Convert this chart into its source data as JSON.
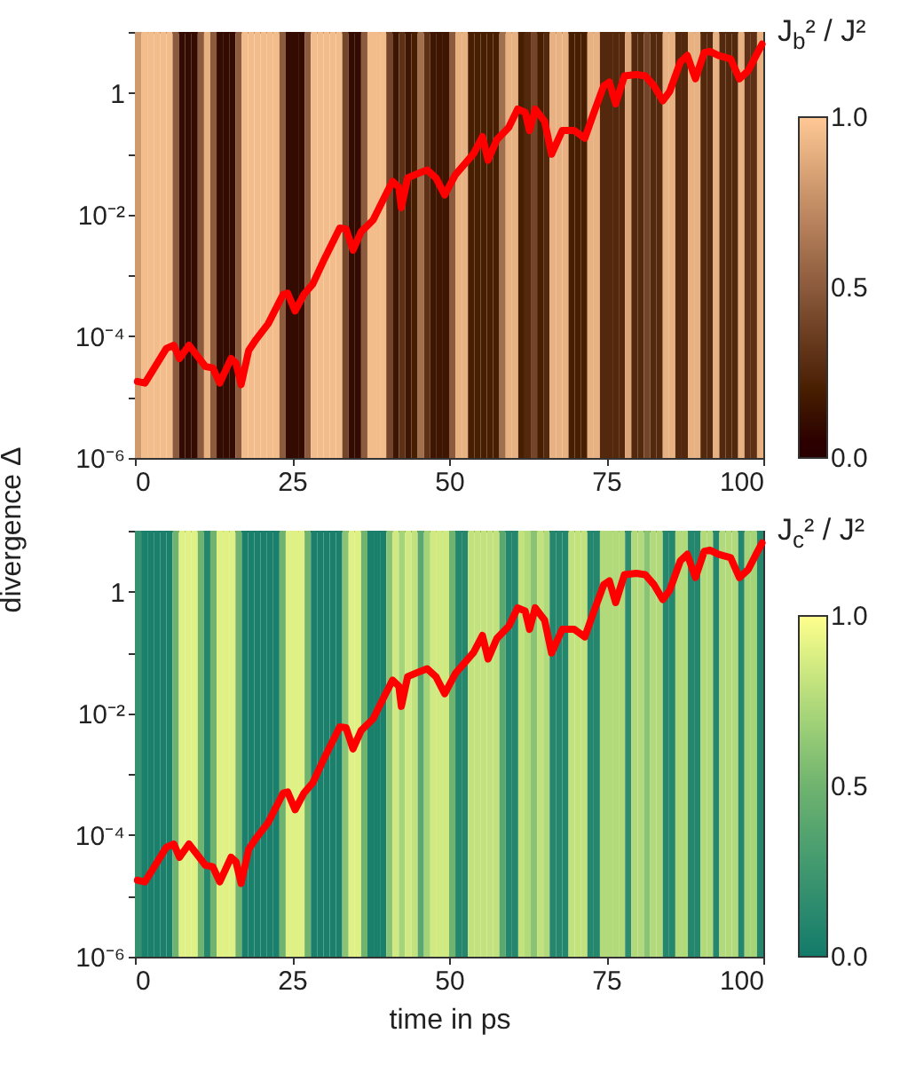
{
  "chart_data": [
    {
      "type": "heatmap",
      "ylabel": "divergence   Δ",
      "clabel": "J$_{b}$² / J²",
      "log": "y",
      "xlim": [
        0,
        100
      ],
      "xticks": [
        0,
        25,
        50,
        75,
        100
      ],
      "ylim": [
        1e-06,
        10
      ],
      "yticks": [
        {
          "value": 1e-06,
          "label": "10⁻⁶"
        },
        {
          "value": 1e-05,
          "label": null
        },
        {
          "value": 0.0001,
          "label": "10⁻⁴"
        },
        {
          "value": 0.001,
          "label": null
        },
        {
          "value": 0.01,
          "label": "10⁻²"
        },
        {
          "value": 0.1,
          "label": null
        },
        1,
        {
          "value": 10,
          "label": null
        }
      ],
      "clim": [
        0,
        1
      ],
      "cticks": [
        {
          "value": 0,
          "label": "0.0"
        },
        {
          "value": 0.5,
          "label": "0.5"
        },
        {
          "value": 1,
          "label": "1.0"
        }
      ],
      "x": [
        0.5,
        1.5,
        2.5,
        3.5,
        4.5,
        5.5,
        6.5,
        7.5,
        8.5,
        9.5,
        10.5,
        11.5,
        12.5,
        13.5,
        14.5,
        15.5,
        16.5,
        17.5,
        18.5,
        19.5,
        20.5,
        21.5,
        22.5,
        23.5,
        24.5,
        25.5,
        26.5,
        27.5,
        28.5,
        29.5,
        30.5,
        31.5,
        32.5,
        33.5,
        34.5,
        35.5,
        36.5,
        37.5,
        38.5,
        39.5,
        40.5,
        41.5,
        42.5,
        43.5,
        44.5,
        45.5,
        46.5,
        47.5,
        48.5,
        49.5,
        50.5,
        51.5,
        52.5,
        53.5,
        54.5,
        55.5,
        56.5,
        57.5,
        58.5,
        59.5,
        60.5,
        61.5,
        62.5,
        63.5,
        64.5,
        65.5,
        66.5,
        67.5,
        68.5,
        69.5,
        70.5,
        71.5,
        72.5,
        73.5,
        74.5,
        75.5,
        76.5,
        77.5,
        78.5,
        79.5,
        80.5,
        81.5,
        82.5,
        83.5,
        84.5,
        85.5,
        86.5,
        87.5,
        88.5,
        89.5,
        90.5,
        91.5,
        92.5,
        93.5,
        94.5,
        95.5,
        96.5,
        97.5,
        98.5,
        99.5
      ],
      "cells": [
        [
          0.8,
          0.95,
          0.95,
          0.95,
          0.95,
          0.95,
          0.5,
          0.1,
          0.1,
          0.1,
          0.5,
          0.9,
          0.5,
          0.1,
          0.1,
          0.1,
          0.5,
          0.95,
          0.95,
          0.95,
          0.95,
          0.95,
          0.95,
          0.5,
          0.1,
          0.1,
          0.1,
          0.5,
          0.95,
          0.95,
          0.95,
          0.95,
          0.95,
          0.4,
          0.1,
          0.1,
          0.5,
          0.95,
          0.95,
          0.95,
          0.4,
          0.15,
          0.3,
          0.15,
          0.2,
          0.6,
          0.3,
          0.15,
          0.15,
          0.15,
          0.5,
          0.9,
          0.9,
          0.2,
          0.2,
          0.2,
          0.2,
          0.2,
          0.6,
          0.9,
          0.9,
          0.2,
          0.25,
          0.4,
          0.2,
          0.25,
          0.9,
          0.9,
          0.9,
          0.2,
          0.2,
          0.2,
          0.9,
          0.9,
          0.25,
          0.25,
          0.25,
          0.25,
          0.85,
          0.25,
          0.25,
          0.4,
          0.25,
          0.25,
          0.9,
          0.9,
          0.25,
          0.25,
          0.9,
          0.9,
          0.25,
          0.25,
          0.9,
          0.25,
          0.25,
          0.25,
          0.9,
          0.3,
          0.3,
          0.9
        ]
      ],
      "series": [
        {
          "type": "line",
          "color": "#ff0000",
          "x": [
            0.4,
            1.6,
            3,
            5,
            6.2,
            7.1,
            8.6,
            9.7,
            11.2,
            12.4,
            13.5,
            15.3,
            16.1,
            16.9,
            18.1,
            19.3,
            21.2,
            23.6,
            24.3,
            25.5,
            26.9,
            28.3,
            30.2,
            32.6,
            33.6,
            34.7,
            36,
            37.9,
            39.8,
            41,
            42,
            42.4,
            43.4,
            45,
            46.5,
            47.9,
            49.3,
            51,
            53.9,
            55.3,
            56.2,
            57.6,
            59.5,
            60.9,
            62.1,
            62.8,
            63.7,
            65.2,
            66.3,
            68,
            69.9,
            71.6,
            72.9,
            74.6,
            75.5,
            76.5,
            77.9,
            79.8,
            81.2,
            82.6,
            84,
            85.1,
            86.8,
            87.9,
            89.2,
            90.6,
            91.5,
            92.9,
            94.8,
            96.2,
            97.6,
            99.1,
            99.8
          ],
          "values": [
            1.8e-05,
            1.7e-05,
            2.9e-05,
            6.3e-05,
            7.1e-05,
            4.3e-05,
            7.1e-05,
            5.1e-05,
            3.2e-05,
            3e-05,
            1.7e-05,
            4.3e-05,
            3.6e-05,
            1.6e-05,
            5.8e-05,
            8.9e-05,
            0.00016,
            0.00049,
            0.00051,
            0.00026,
            0.00049,
            0.00072,
            0.0019,
            0.006,
            0.0058,
            0.0026,
            0.0052,
            0.0081,
            0.02,
            0.035,
            0.028,
            0.013,
            0.04,
            0.047,
            0.054,
            0.04,
            0.021,
            0.045,
            0.1,
            0.19,
            0.078,
            0.17,
            0.27,
            0.54,
            0.48,
            0.24,
            0.54,
            0.34,
            0.098,
            0.24,
            0.24,
            0.18,
            0.43,
            1.3,
            1.5,
            0.66,
            1.9,
            2.0,
            1.9,
            1.3,
            0.74,
            1.05,
            3.2,
            4.1,
            1.7,
            4.6,
            4.8,
            4.1,
            3.6,
            1.7,
            2.3,
            4.6,
            6.3
          ]
        }
      ]
    },
    {
      "type": "heatmap",
      "xlabel": "time in ps",
      "clabel": "J$_{c}$² / J²",
      "log": "y",
      "xlim": [
        0,
        100
      ],
      "xticks": [
        0,
        25,
        50,
        75,
        100
      ],
      "ylim": [
        1e-06,
        10
      ],
      "yticks": [
        {
          "value": 1e-06,
          "label": "10⁻⁶"
        },
        {
          "value": 1e-05,
          "label": null
        },
        {
          "value": 0.0001,
          "label": "10⁻⁴"
        },
        {
          "value": 0.001,
          "label": null
        },
        {
          "value": 0.01,
          "label": "10⁻²"
        },
        {
          "value": 0.1,
          "label": null
        },
        1,
        {
          "value": 10,
          "label": null
        }
      ],
      "clim": [
        0,
        1
      ],
      "cticks": [
        {
          "value": 0,
          "label": "0.0"
        },
        {
          "value": 0.5,
          "label": "0.5"
        },
        {
          "value": 1,
          "label": "1.0"
        }
      ],
      "x": [
        0.5,
        1.5,
        2.5,
        3.5,
        4.5,
        5.5,
        6.5,
        7.5,
        8.5,
        9.5,
        10.5,
        11.5,
        12.5,
        13.5,
        14.5,
        15.5,
        16.5,
        17.5,
        18.5,
        19.5,
        20.5,
        21.5,
        22.5,
        23.5,
        24.5,
        25.5,
        26.5,
        27.5,
        28.5,
        29.5,
        30.5,
        31.5,
        32.5,
        33.5,
        34.5,
        35.5,
        36.5,
        37.5,
        38.5,
        39.5,
        40.5,
        41.5,
        42.5,
        43.5,
        44.5,
        45.5,
        46.5,
        47.5,
        48.5,
        49.5,
        50.5,
        51.5,
        52.5,
        53.5,
        54.5,
        55.5,
        56.5,
        57.5,
        58.5,
        59.5,
        60.5,
        61.5,
        62.5,
        63.5,
        64.5,
        65.5,
        66.5,
        67.5,
        68.5,
        69.5,
        70.5,
        71.5,
        72.5,
        73.5,
        74.5,
        75.5,
        76.5,
        77.5,
        78.5,
        79.5,
        80.5,
        81.5,
        82.5,
        83.5,
        84.5,
        85.5,
        86.5,
        87.5,
        88.5,
        89.5,
        90.5,
        91.5,
        92.5,
        93.5,
        94.5,
        95.5,
        96.5,
        97.5,
        98.5,
        99.5
      ],
      "cells": [
        [
          0.2,
          0.05,
          0.05,
          0.05,
          0.05,
          0.05,
          0.5,
          0.9,
          0.9,
          0.9,
          0.5,
          0.1,
          0.5,
          0.9,
          0.9,
          0.9,
          0.5,
          0.05,
          0.05,
          0.05,
          0.05,
          0.05,
          0.05,
          0.5,
          0.9,
          0.9,
          0.9,
          0.5,
          0.05,
          0.05,
          0.05,
          0.05,
          0.05,
          0.6,
          0.9,
          0.9,
          0.5,
          0.05,
          0.05,
          0.05,
          0.6,
          0.85,
          0.7,
          0.85,
          0.8,
          0.4,
          0.7,
          0.85,
          0.85,
          0.85,
          0.5,
          0.1,
          0.1,
          0.8,
          0.8,
          0.8,
          0.8,
          0.8,
          0.4,
          0.1,
          0.1,
          0.8,
          0.75,
          0.6,
          0.8,
          0.75,
          0.1,
          0.1,
          0.1,
          0.8,
          0.8,
          0.8,
          0.1,
          0.1,
          0.75,
          0.75,
          0.75,
          0.75,
          0.15,
          0.75,
          0.75,
          0.6,
          0.75,
          0.75,
          0.1,
          0.1,
          0.75,
          0.75,
          0.1,
          0.1,
          0.75,
          0.75,
          0.1,
          0.75,
          0.75,
          0.75,
          0.1,
          0.7,
          0.7,
          0.1
        ]
      ],
      "series": [
        {
          "type": "line",
          "color": "#ff0000",
          "x": [
            0.4,
            1.6,
            3,
            5,
            6.2,
            7.1,
            8.6,
            9.7,
            11.2,
            12.4,
            13.5,
            15.3,
            16.1,
            16.9,
            18.1,
            19.3,
            21.2,
            23.6,
            24.3,
            25.5,
            26.9,
            28.3,
            30.2,
            32.6,
            33.6,
            34.7,
            36,
            37.9,
            39.8,
            41,
            42,
            42.4,
            43.4,
            45,
            46.5,
            47.9,
            49.3,
            51,
            53.9,
            55.3,
            56.2,
            57.6,
            59.5,
            60.9,
            62.1,
            62.8,
            63.7,
            65.2,
            66.3,
            68,
            69.9,
            71.6,
            72.9,
            74.6,
            75.5,
            76.5,
            77.9,
            79.8,
            81.2,
            82.6,
            84,
            85.1,
            86.8,
            87.9,
            89.2,
            90.6,
            91.5,
            92.9,
            94.8,
            96.2,
            97.6,
            99.1,
            99.8
          ],
          "values": [
            1.8e-05,
            1.7e-05,
            2.9e-05,
            6.3e-05,
            7.1e-05,
            4.3e-05,
            7.1e-05,
            5.1e-05,
            3.2e-05,
            3e-05,
            1.7e-05,
            4.3e-05,
            3.6e-05,
            1.6e-05,
            5.8e-05,
            8.9e-05,
            0.00016,
            0.00049,
            0.00051,
            0.00026,
            0.00049,
            0.00072,
            0.0019,
            0.006,
            0.0058,
            0.0026,
            0.0052,
            0.0081,
            0.02,
            0.035,
            0.028,
            0.013,
            0.04,
            0.047,
            0.054,
            0.04,
            0.021,
            0.045,
            0.1,
            0.19,
            0.078,
            0.17,
            0.27,
            0.54,
            0.48,
            0.24,
            0.54,
            0.34,
            0.098,
            0.24,
            0.24,
            0.18,
            0.43,
            1.3,
            1.5,
            0.66,
            1.9,
            2.0,
            1.9,
            1.3,
            0.74,
            1.05,
            3.2,
            4.1,
            1.7,
            4.6,
            4.8,
            4.1,
            3.6,
            1.7,
            2.3,
            4.6,
            6.3
          ]
        }
      ]
    }
  ]
}
